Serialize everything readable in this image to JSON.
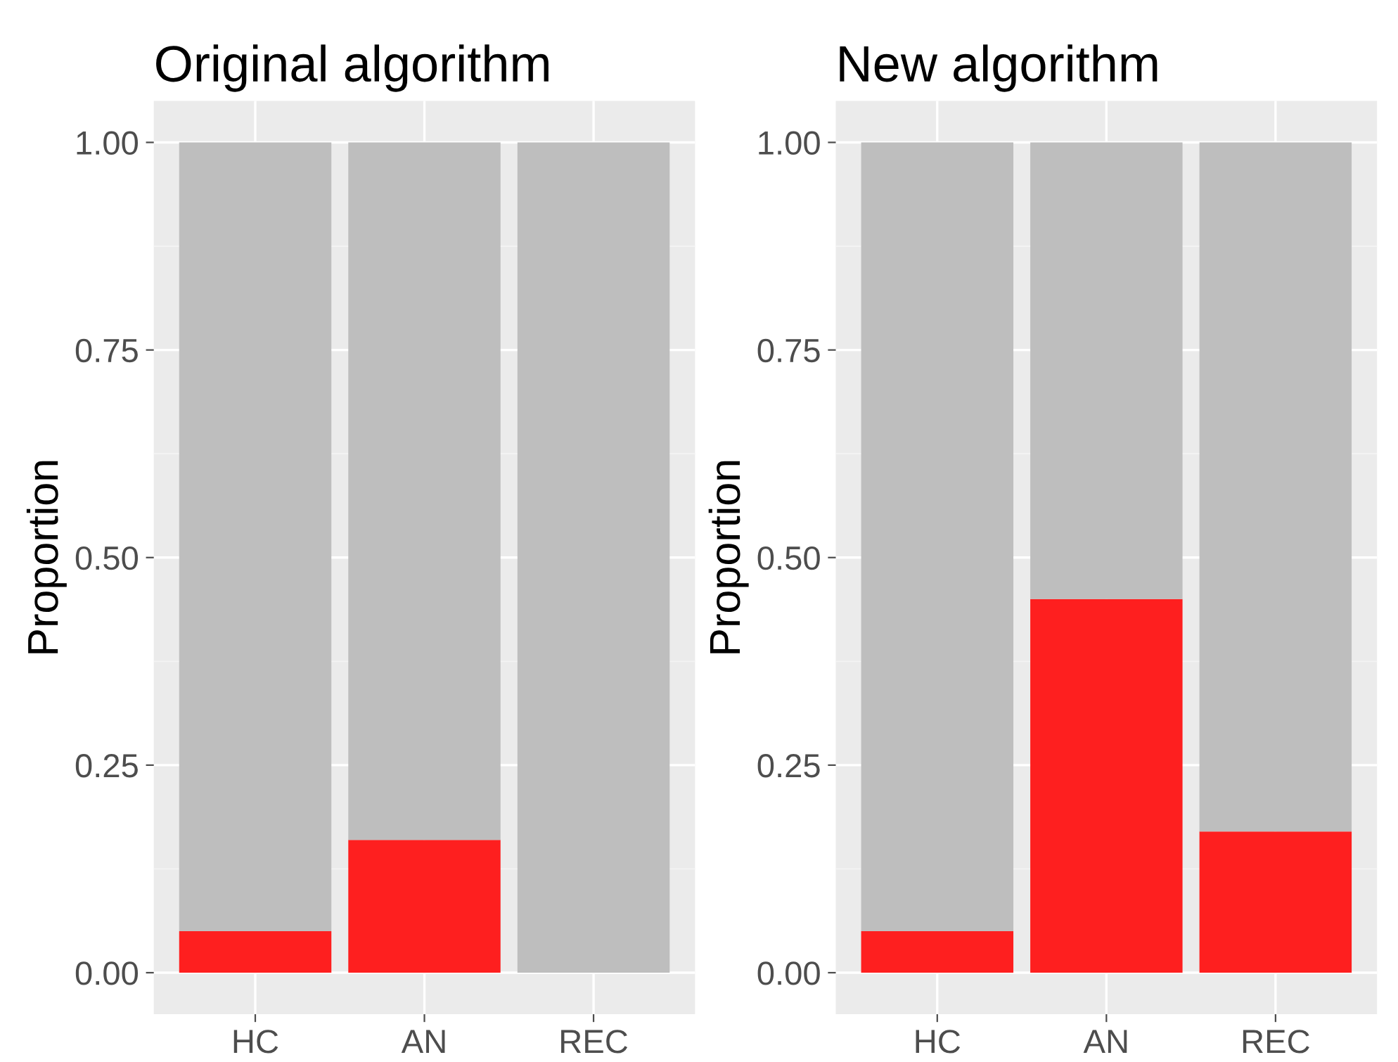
{
  "chart_data": [
    {
      "type": "bar",
      "title": "Original algorithm",
      "ylabel": "Proportion",
      "categories": [
        "HC",
        "AN",
        "REC"
      ],
      "stacked": true,
      "series": [
        {
          "color": "#fe1f1f",
          "values": [
            0.05,
            0.16,
            0
          ]
        },
        {
          "color": "#bebebe",
          "values": [
            0.95,
            0.84,
            1
          ]
        }
      ],
      "ylim": [
        -0.05,
        1.05
      ],
      "yticks": [
        {
          "value": 0,
          "label": "0.00"
        },
        {
          "value": 0.25,
          "label": "0.25"
        },
        {
          "value": 0.5,
          "label": "0.50"
        },
        {
          "value": 0.75,
          "label": "0.75"
        },
        {
          "value": 1,
          "label": "1.00"
        }
      ],
      "grid": true
    },
    {
      "type": "bar",
      "title": "New algorithm",
      "ylabel": "Proportion",
      "categories": [
        "HC",
        "AN",
        "REC"
      ],
      "stacked": true,
      "series": [
        {
          "color": "#fe1f1f",
          "values": [
            0.05,
            0.45,
            0.17
          ]
        },
        {
          "color": "#bebebe",
          "values": [
            0.95,
            0.55,
            0.83
          ]
        }
      ],
      "ylim": [
        -0.05,
        1.05
      ],
      "yticks": [
        {
          "value": 0,
          "label": "0.00"
        },
        {
          "value": 0.25,
          "label": "0.25"
        },
        {
          "value": 0.5,
          "label": "0.50"
        },
        {
          "value": 0.75,
          "label": "0.75"
        },
        {
          "value": 1,
          "label": "1.00"
        }
      ],
      "grid": true
    }
  ]
}
